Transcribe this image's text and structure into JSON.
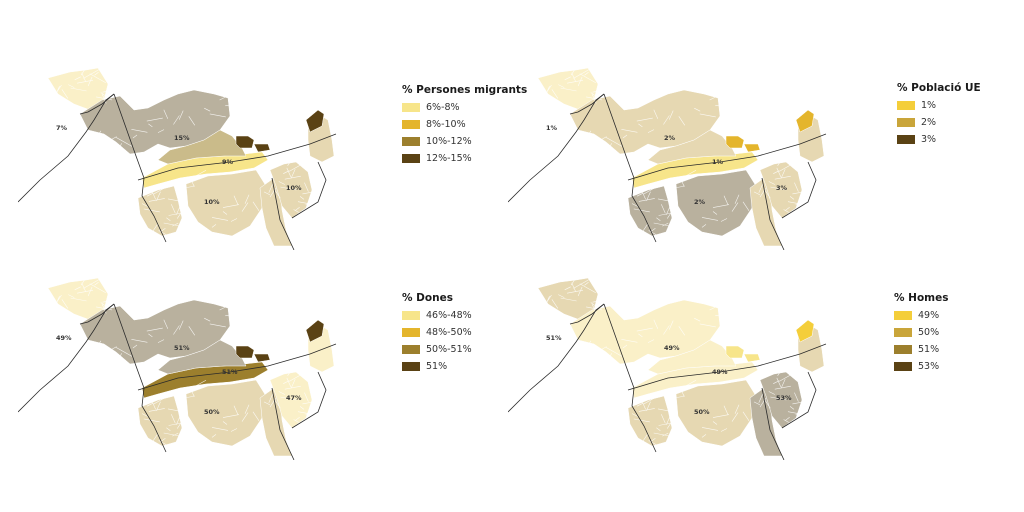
{
  "maps": [
    {
      "id": "migrants",
      "legend": {
        "title": "% Persones migrants",
        "items": [
          {
            "label": "6%-8%",
            "color": "#f7e58a"
          },
          {
            "label": "8%-10%",
            "color": "#e4b52c"
          },
          {
            "label": "10%-12%",
            "color": "#9c7f2d"
          },
          {
            "label": "12%-15%",
            "color": "#5a4214"
          }
        ]
      },
      "district_labels": [
        "7%",
        "15%",
        "9%",
        "10%",
        "10%"
      ],
      "colors": {
        "west": "#ffffff",
        "north": "#faf0c8",
        "northwest": "#b9b19e",
        "northcenter": "#b9b19e",
        "strip": "#f7e58a",
        "central": "#cabb8a",
        "southwest": "#e6d8b2",
        "southcenter": "#e6d8b2",
        "southeast": "#e6d8b2",
        "east": "#e6d8b2",
        "northeast": "#e6d8b2",
        "patch": "#5a4214",
        "corner": "#5a4214"
      }
    },
    {
      "id": "poblacio-ue",
      "legend": {
        "title": "% Població UE",
        "items": [
          {
            "label": "1%",
            "color": "#f4ce3a"
          },
          {
            "label": "2%",
            "color": "#c9a53a"
          },
          {
            "label": "3%",
            "color": "#5a4214"
          }
        ]
      },
      "district_labels": [
        "1%",
        "2%",
        "1%",
        "2%",
        "3%"
      ],
      "colors": {
        "west": "#ffffff",
        "north": "#faf0c8",
        "northwest": "#e6d8b2",
        "northcenter": "#e6d8b2",
        "strip": "#f7e58a",
        "central": "#e6d8b2",
        "southwest": "#b9b19e",
        "southcenter": "#b9b19e",
        "southeast": "#e6d8b2",
        "east": "#e6d8b2",
        "northeast": "#e6d8b2",
        "patch": "#e4b52c",
        "corner": "#e4b52c"
      }
    },
    {
      "id": "dones",
      "legend": {
        "title": "% Dones",
        "items": [
          {
            "label": "46%-48%",
            "color": "#f7e58a"
          },
          {
            "label": "48%-50%",
            "color": "#e4b52c"
          },
          {
            "label": "50%-51%",
            "color": "#9c7f2d"
          },
          {
            "label": "51%",
            "color": "#5a4214"
          }
        ]
      },
      "district_labels": [
        "49%",
        "51%",
        "51%",
        "50%",
        "47%"
      ],
      "colors": {
        "west": "#ffffff",
        "north": "#faf0c8",
        "northwest": "#b9b19e",
        "northcenter": "#b9b19e",
        "strip": "#9c7f2d",
        "central": "#b9b19e",
        "southwest": "#e6d8b2",
        "southcenter": "#e6d8b2",
        "southeast": "#e6d8b2",
        "east": "#faf0c8",
        "northeast": "#faf0c8",
        "patch": "#5a4214",
        "corner": "#5a4214"
      }
    },
    {
      "id": "homes",
      "legend": {
        "title": "% Homes",
        "items": [
          {
            "label": "49%",
            "color": "#f4ce3a"
          },
          {
            "label": "50%",
            "color": "#c9a53a"
          },
          {
            "label": "51%",
            "color": "#9c7f2d"
          },
          {
            "label": "53%",
            "color": "#5a4214"
          }
        ]
      },
      "district_labels": [
        "51%",
        "49%",
        "49%",
        "50%",
        "53%"
      ],
      "colors": {
        "west": "#ffffff",
        "north": "#e6d8b2",
        "northwest": "#faf0c8",
        "northcenter": "#faf0c8",
        "strip": "#faf0c8",
        "central": "#faf0c8",
        "southwest": "#e6d8b2",
        "southcenter": "#e6d8b2",
        "southeast": "#b9b19e",
        "east": "#b9b19e",
        "northeast": "#e6d8b2",
        "patch": "#f7e58a",
        "corner": "#f4ce3a"
      }
    }
  ]
}
